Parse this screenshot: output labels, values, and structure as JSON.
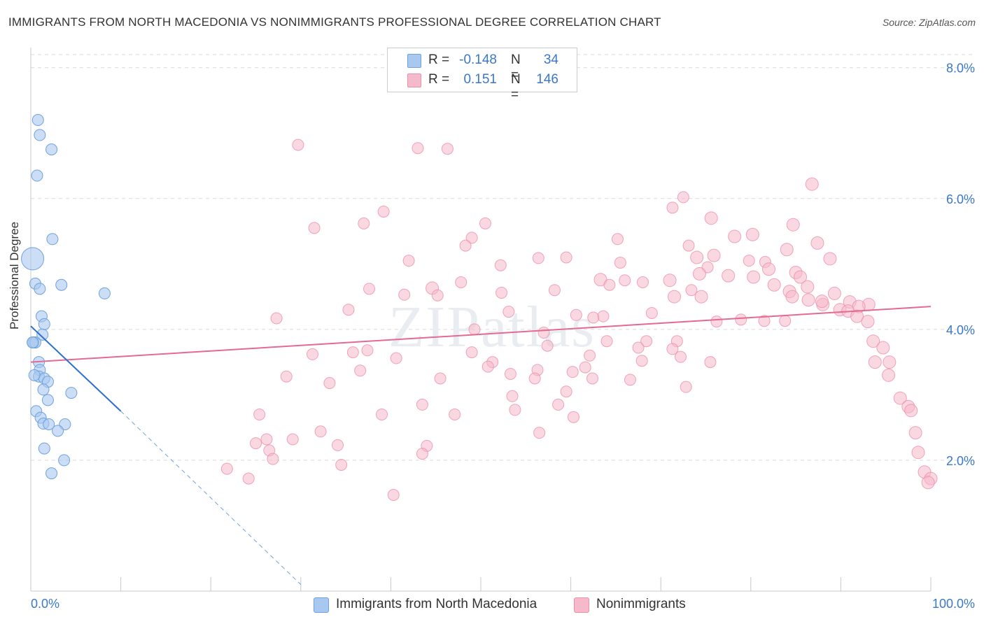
{
  "title": "IMMIGRANTS FROM NORTH MACEDONIA VS NONIMMIGRANTS PROFESSIONAL DEGREE CORRELATION CHART",
  "source": "Source: ZipAtlas.com",
  "watermark": "ZIPatlas",
  "colors": {
    "blue_fill": "#a9c8ef",
    "blue_stroke": "#6fa1de",
    "blue_line": "#2a6fd1",
    "pink_fill": "#f6b8cb",
    "pink_stroke": "#ec8fac",
    "pink_line": "#e46a94",
    "axis_label": "#3a78c9",
    "grid": "#d9d9d9"
  },
  "legend_top": [
    {
      "series": "blue",
      "r_label": "R =",
      "r_value": "-0.148",
      "n_label": "N =",
      "n_value": "34"
    },
    {
      "series": "pink",
      "r_label": "R =",
      "r_value": "0.151",
      "n_label": "N =",
      "n_value": "146"
    }
  ],
  "legend_bottom": [
    {
      "series": "blue",
      "label": "Immigrants from North Macedonia"
    },
    {
      "series": "pink",
      "label": "Nonimmigrants"
    }
  ],
  "chart_data": {
    "type": "scatter",
    "title": "IMMIGRANTS FROM NORTH MACEDONIA VS NONIMMIGRANTS PROFESSIONAL DEGREE CORRELATION CHART",
    "xlabel": "",
    "ylabel": "Professional Degree",
    "xlim": [
      0,
      100
    ],
    "ylim": [
      0,
      8.2
    ],
    "x_tick_labels": [
      "0.0%",
      "100.0%"
    ],
    "y_ticks": [
      2,
      4,
      6,
      8
    ],
    "y_tick_labels": [
      "2.0%",
      "4.0%",
      "6.0%",
      "8.0%"
    ],
    "grid": true,
    "legend_placement": "top-center",
    "series": [
      {
        "name": "Immigrants from North Macedonia",
        "color": "blue",
        "regression": {
          "x0": 0,
          "y0": 4.05,
          "x1": 10,
          "y1": 2.75,
          "dashed_to_x": 30,
          "dashed_to_y": 0.1
        },
        "points": [
          [
            0.2,
            5.08,
            32
          ],
          [
            0.8,
            7.2,
            16
          ],
          [
            1.0,
            6.97,
            16
          ],
          [
            2.3,
            6.75,
            16
          ],
          [
            0.7,
            6.35,
            16
          ],
          [
            2.4,
            5.38,
            16
          ],
          [
            0.5,
            4.7,
            16
          ],
          [
            3.4,
            4.68,
            16
          ],
          [
            1.0,
            4.62,
            16
          ],
          [
            8.2,
            4.55,
            16
          ],
          [
            1.2,
            4.2,
            16
          ],
          [
            1.5,
            4.08,
            16
          ],
          [
            1.3,
            3.92,
            16
          ],
          [
            0.3,
            3.8,
            16
          ],
          [
            0.5,
            3.8,
            16
          ],
          [
            0.9,
            3.5,
            16
          ],
          [
            1.0,
            3.38,
            16
          ],
          [
            0.9,
            3.28,
            16
          ],
          [
            1.5,
            3.25,
            16
          ],
          [
            1.9,
            3.2,
            16
          ],
          [
            1.4,
            3.08,
            16
          ],
          [
            4.5,
            3.03,
            16
          ],
          [
            1.9,
            2.92,
            16
          ],
          [
            0.6,
            2.75,
            16
          ],
          [
            1.1,
            2.65,
            16
          ],
          [
            1.4,
            2.56,
            16
          ],
          [
            2.0,
            2.55,
            16
          ],
          [
            3.8,
            2.55,
            16
          ],
          [
            3.0,
            2.45,
            16
          ],
          [
            1.5,
            2.18,
            16
          ],
          [
            3.7,
            2.0,
            16
          ],
          [
            2.3,
            1.8,
            16
          ],
          [
            0.2,
            3.8,
            16
          ],
          [
            0.4,
            3.3,
            16
          ]
        ]
      },
      {
        "name": "Nonimmigrants",
        "color": "pink",
        "regression": {
          "x0": 0,
          "y0": 3.5,
          "x1": 100,
          "y1": 4.35
        },
        "points": [
          [
            40.5,
            7.9,
            16
          ],
          [
            29.7,
            6.82,
            16
          ],
          [
            43.0,
            6.77,
            16
          ],
          [
            46.3,
            6.76,
            16
          ],
          [
            86.8,
            6.22,
            18
          ],
          [
            72.5,
            6.02,
            16
          ],
          [
            71.3,
            5.86,
            16
          ],
          [
            39.2,
            5.8,
            16
          ],
          [
            75.6,
            5.7,
            18
          ],
          [
            37.0,
            5.62,
            16
          ],
          [
            50.5,
            5.62,
            16
          ],
          [
            31.5,
            5.55,
            16
          ],
          [
            84.7,
            5.6,
            18
          ],
          [
            80.2,
            5.45,
            18
          ],
          [
            78.2,
            5.42,
            18
          ],
          [
            49.0,
            5.4,
            16
          ],
          [
            65.2,
            5.38,
            16
          ],
          [
            87.4,
            5.32,
            18
          ],
          [
            48.3,
            5.28,
            16
          ],
          [
            73.1,
            5.28,
            16
          ],
          [
            84.0,
            5.22,
            18
          ],
          [
            75.9,
            5.13,
            18
          ],
          [
            74.0,
            5.1,
            18
          ],
          [
            88.8,
            5.08,
            18
          ],
          [
            56.4,
            5.09,
            16
          ],
          [
            59.5,
            5.1,
            16
          ],
          [
            42.0,
            5.05,
            16
          ],
          [
            65.5,
            5.02,
            16
          ],
          [
            79.8,
            5.05,
            16
          ],
          [
            81.6,
            5.03,
            16
          ],
          [
            52.2,
            4.98,
            16
          ],
          [
            75.2,
            4.95,
            16
          ],
          [
            82.0,
            4.92,
            18
          ],
          [
            85.0,
            4.87,
            18
          ],
          [
            74.3,
            4.85,
            18
          ],
          [
            77.5,
            4.82,
            18
          ],
          [
            80.3,
            4.8,
            18
          ],
          [
            85.5,
            4.8,
            18
          ],
          [
            63.3,
            4.76,
            18
          ],
          [
            71.0,
            4.75,
            18
          ],
          [
            86.3,
            4.65,
            18
          ],
          [
            47.8,
            4.72,
            16
          ],
          [
            66.0,
            4.75,
            16
          ],
          [
            68.0,
            4.72,
            16
          ],
          [
            64.3,
            4.68,
            16
          ],
          [
            37.6,
            4.62,
            16
          ],
          [
            44.6,
            4.63,
            18
          ],
          [
            58.2,
            4.6,
            16
          ],
          [
            84.3,
            4.58,
            18
          ],
          [
            52.3,
            4.56,
            16
          ],
          [
            89.3,
            4.55,
            18
          ],
          [
            73.4,
            4.6,
            16
          ],
          [
            41.5,
            4.53,
            16
          ],
          [
            45.2,
            4.52,
            16
          ],
          [
            71.5,
            4.5,
            18
          ],
          [
            74.5,
            4.5,
            18
          ],
          [
            84.6,
            4.5,
            18
          ],
          [
            88.0,
            4.38,
            18
          ],
          [
            93.1,
            4.38,
            18
          ],
          [
            87.9,
            4.43,
            18
          ],
          [
            86.4,
            4.45,
            18
          ],
          [
            91.0,
            4.42,
            18
          ],
          [
            92.0,
            4.35,
            18
          ],
          [
            89.9,
            4.3,
            18
          ],
          [
            90.8,
            4.28,
            18
          ],
          [
            35.3,
            4.3,
            16
          ],
          [
            53.1,
            4.27,
            16
          ],
          [
            60.6,
            4.22,
            16
          ],
          [
            63.6,
            4.2,
            16
          ],
          [
            69.0,
            4.25,
            16
          ],
          [
            91.8,
            4.2,
            18
          ],
          [
            27.3,
            4.17,
            16
          ],
          [
            78.9,
            4.15,
            16
          ],
          [
            81.5,
            4.13,
            16
          ],
          [
            83.8,
            4.13,
            16
          ],
          [
            93.0,
            4.12,
            18
          ],
          [
            76.2,
            4.12,
            16
          ],
          [
            62.5,
            4.18,
            16
          ],
          [
            49.3,
            4.0,
            16
          ],
          [
            57.0,
            3.95,
            16
          ],
          [
            93.6,
            3.82,
            18
          ],
          [
            68.4,
            3.82,
            16
          ],
          [
            71.8,
            3.82,
            16
          ],
          [
            64.0,
            3.82,
            16
          ],
          [
            67.5,
            3.72,
            16
          ],
          [
            57.4,
            3.75,
            16
          ],
          [
            71.3,
            3.7,
            16
          ],
          [
            94.7,
            3.72,
            18
          ],
          [
            37.4,
            3.68,
            16
          ],
          [
            31.3,
            3.62,
            16
          ],
          [
            35.8,
            3.65,
            16
          ],
          [
            49.0,
            3.65,
            16
          ],
          [
            62.1,
            3.6,
            16
          ],
          [
            72.2,
            3.58,
            16
          ],
          [
            40.6,
            3.56,
            16
          ],
          [
            51.3,
            3.5,
            16
          ],
          [
            67.9,
            3.52,
            16
          ],
          [
            75.5,
            3.5,
            16
          ],
          [
            93.8,
            3.5,
            18
          ],
          [
            95.4,
            3.5,
            18
          ],
          [
            50.8,
            3.43,
            16
          ],
          [
            61.6,
            3.42,
            16
          ],
          [
            36.6,
            3.37,
            16
          ],
          [
            56.3,
            3.38,
            16
          ],
          [
            60.2,
            3.35,
            16
          ],
          [
            53.3,
            3.32,
            16
          ],
          [
            95.3,
            3.3,
            18
          ],
          [
            28.4,
            3.28,
            16
          ],
          [
            56.0,
            3.25,
            16
          ],
          [
            45.5,
            3.25,
            16
          ],
          [
            62.4,
            3.25,
            16
          ],
          [
            66.6,
            3.23,
            16
          ],
          [
            33.2,
            3.18,
            16
          ],
          [
            72.8,
            3.12,
            16
          ],
          [
            59.5,
            3.05,
            16
          ],
          [
            96.6,
            2.95,
            18
          ],
          [
            53.5,
            2.98,
            16
          ],
          [
            43.5,
            2.85,
            16
          ],
          [
            58.6,
            2.85,
            16
          ],
          [
            97.5,
            2.82,
            18
          ],
          [
            97.8,
            2.76,
            18
          ],
          [
            53.8,
            2.77,
            16
          ],
          [
            25.4,
            2.7,
            16
          ],
          [
            39.0,
            2.7,
            16
          ],
          [
            47.1,
            2.7,
            16
          ],
          [
            60.3,
            2.66,
            16
          ],
          [
            32.2,
            2.44,
            16
          ],
          [
            56.5,
            2.42,
            16
          ],
          [
            98.3,
            2.42,
            18
          ],
          [
            26.2,
            2.32,
            16
          ],
          [
            29.1,
            2.32,
            16
          ],
          [
            25.0,
            2.26,
            16
          ],
          [
            34.1,
            2.23,
            16
          ],
          [
            44.0,
            2.22,
            16
          ],
          [
            26.5,
            2.15,
            16
          ],
          [
            43.5,
            2.1,
            16
          ],
          [
            26.9,
            2.02,
            16
          ],
          [
            98.6,
            2.12,
            18
          ],
          [
            34.5,
            1.93,
            16
          ],
          [
            21.8,
            1.87,
            16
          ],
          [
            99.3,
            1.82,
            18
          ],
          [
            24.2,
            1.72,
            16
          ],
          [
            100.0,
            1.72,
            18
          ],
          [
            99.7,
            1.66,
            18
          ],
          [
            40.3,
            1.47,
            16
          ],
          [
            82.6,
            4.68,
            18
          ]
        ]
      }
    ]
  }
}
